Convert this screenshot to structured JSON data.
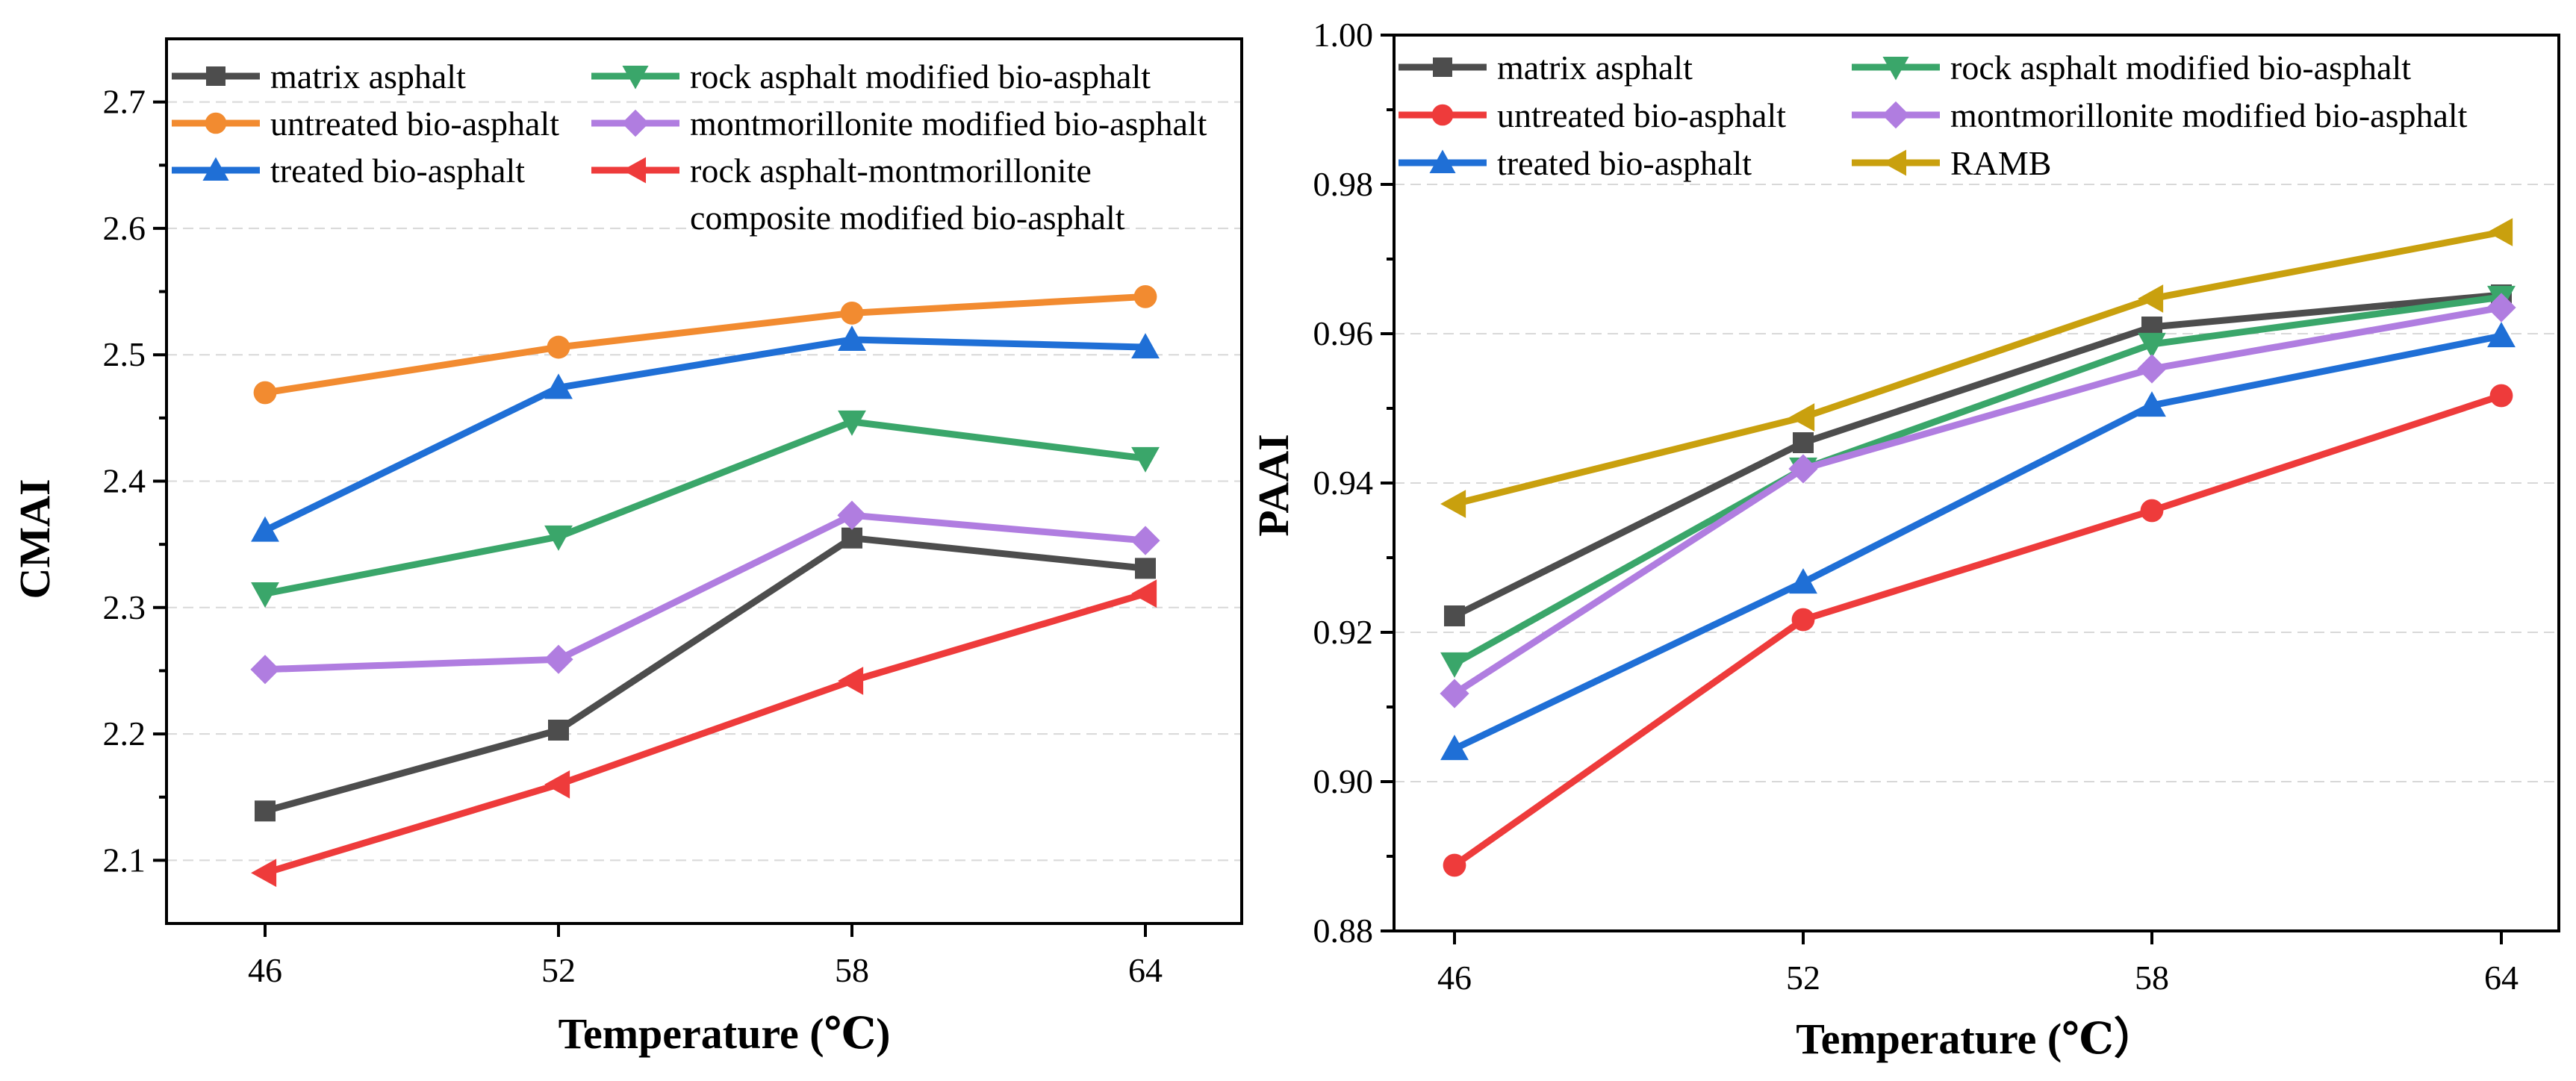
{
  "chart_data": [
    {
      "type": "line",
      "title": "",
      "xlabel": "Temperature (℃)",
      "ylabel": "CMAI",
      "categories": [
        "46",
        "52",
        "58",
        "64"
      ],
      "ylim": [
        2.05,
        2.75
      ],
      "yticks": [
        "2.1",
        "2.2",
        "2.3",
        "2.4",
        "2.5",
        "2.6",
        "2.7"
      ],
      "grid": true,
      "legend_position": "top",
      "series": [
        {
          "name": "matrix asphalt",
          "marker": "square",
          "color": "#4d4d4d",
          "values": [
            2.139,
            2.203,
            2.355,
            2.331
          ]
        },
        {
          "name": "untreated bio-asphalt",
          "marker": "circle",
          "color": "#f28b30",
          "values": [
            2.47,
            2.506,
            2.533,
            2.546
          ]
        },
        {
          "name": "treated bio-asphalt",
          "marker": "triangle-up",
          "color": "#1f6fd6",
          "values": [
            2.361,
            2.474,
            2.512,
            2.506
          ]
        },
        {
          "name": "rock asphalt modified bio-asphalt",
          "marker": "triangle-down",
          "color": "#3aa66a",
          "values": [
            2.311,
            2.356,
            2.447,
            2.418
          ]
        },
        {
          "name": "montmorillonite modified bio-asphalt",
          "marker": "diamond",
          "color": "#b07de0",
          "values": [
            2.251,
            2.259,
            2.373,
            2.353
          ]
        },
        {
          "name": "rock asphalt-montmorillonite composite modified bio-asphalt",
          "legend_lines": [
            "rock asphalt-montmorillonite",
            "composite modified bio-asphalt"
          ],
          "marker": "triangle-left",
          "color": "#ee3b3b",
          "values": [
            2.09,
            2.16,
            2.242,
            2.311
          ]
        }
      ]
    },
    {
      "type": "line",
      "title": "",
      "xlabel": "Temperature (℃）",
      "ylabel": "PAAI",
      "categories": [
        "46",
        "52",
        "58",
        "64"
      ],
      "ylim": [
        0.88,
        1.0
      ],
      "yticks": [
        "0.88",
        "0.90",
        "0.92",
        "0.94",
        "0.96",
        "0.98",
        "1.00"
      ],
      "grid": true,
      "legend_position": "top",
      "series": [
        {
          "name": "matrix asphalt",
          "marker": "square",
          "color": "#4d4d4d",
          "values": [
            0.9222,
            0.9454,
            0.9609,
            0.9652
          ]
        },
        {
          "name": "untreated bio-asphalt",
          "marker": "circle",
          "color": "#ee3b3b",
          "values": [
            0.8888,
            0.9217,
            0.9363,
            0.9517
          ]
        },
        {
          "name": "treated bio-asphalt",
          "marker": "triangle-up",
          "color": "#1f6fd6",
          "values": [
            0.9044,
            0.9267,
            0.9504,
            0.9597
          ]
        },
        {
          "name": "rock asphalt modified bio-asphalt",
          "marker": "triangle-down",
          "color": "#3aa66a",
          "values": [
            0.9158,
            0.9419,
            0.9586,
            0.9649
          ]
        },
        {
          "name": "montmorillonite modified bio-asphalt",
          "marker": "diamond",
          "color": "#b07de0",
          "values": [
            0.9118,
            0.9419,
            0.9553,
            0.9635
          ]
        },
        {
          "name": "RAMB",
          "marker": "triangle-left",
          "color": "#c9a00e",
          "values": [
            0.9372,
            0.9488,
            0.9647,
            0.9736
          ]
        }
      ]
    }
  ]
}
